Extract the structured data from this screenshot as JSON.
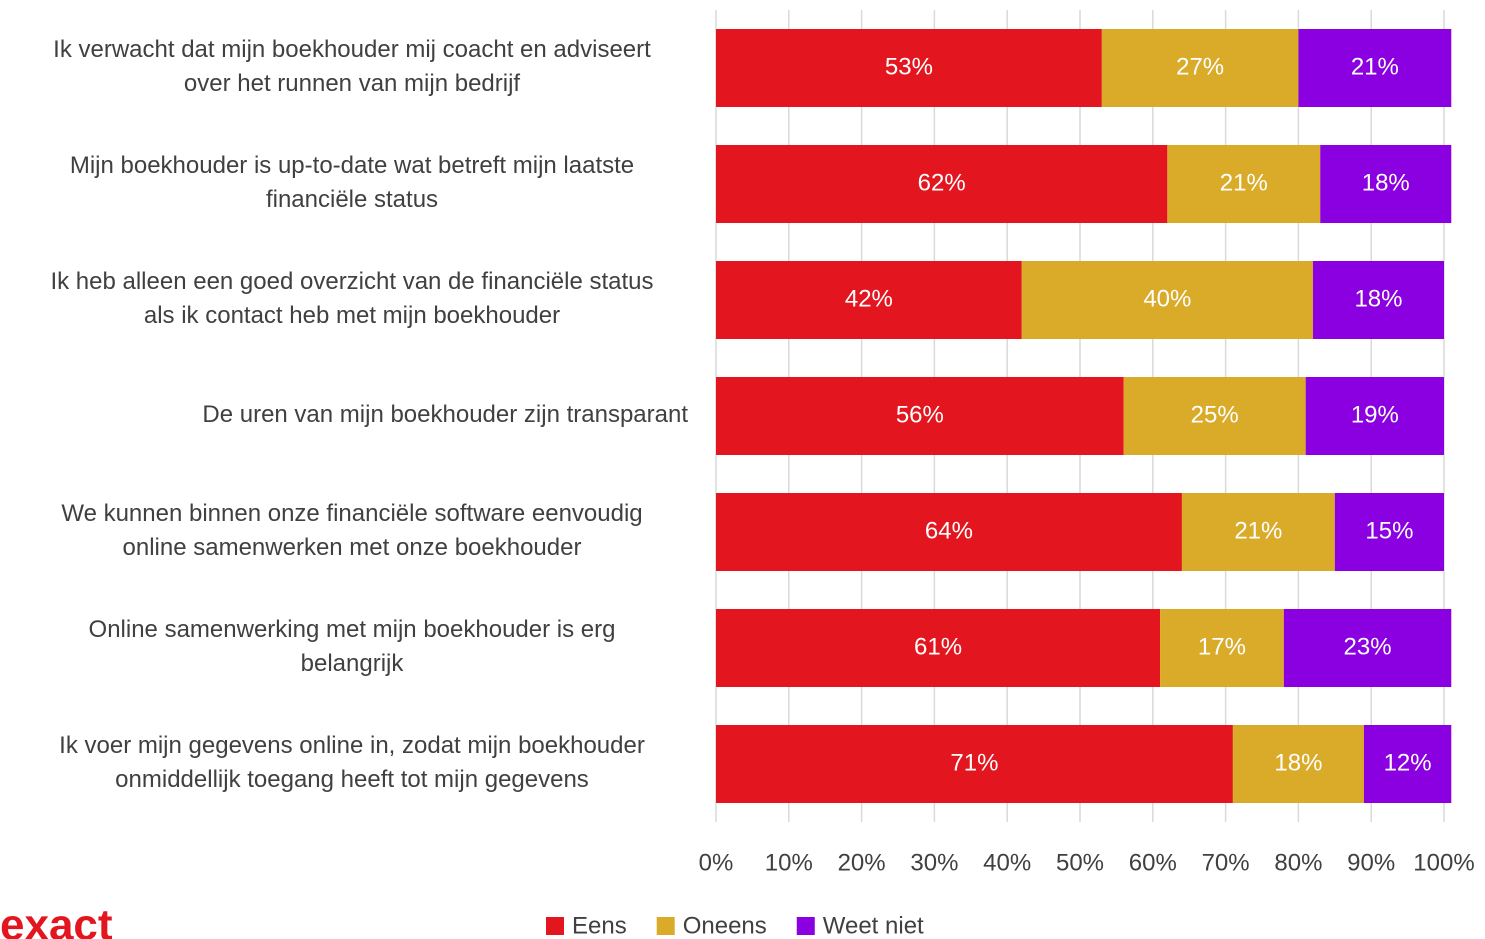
{
  "chart_data": {
    "type": "stacked_barh",
    "categories": [
      "Ik verwacht dat mijn boekhouder mij coacht en adviseert\nover het runnen van mijn bedrijf",
      "Mijn boekhouder is up-to-date wat betreft mijn laatste\nfinanciële status",
      "Ik heb alleen een goed overzicht van de financiële status\nals ik contact heb met mijn boekhouder",
      "De uren van mijn boekhouder zijn transparant",
      "We kunnen binnen onze financiële software eenvoudig\nonline samenwerken met onze boekhouder",
      "Online samenwerking met mijn boekhouder is erg\nbelangrijk",
      "Ik voer mijn gegevens online in, zodat mijn boekhouder\nonmiddellijk toegang heeft tot mijn gegevens"
    ],
    "series": [
      {
        "name": "Eens",
        "color": "#e3151e",
        "values": [
          53,
          62,
          42,
          56,
          64,
          61,
          71
        ],
        "value_labels": [
          "53%",
          "62%",
          "42%",
          "56%",
          "64%",
          "61%",
          "71%"
        ]
      },
      {
        "name": "Oneens",
        "color": "#d9ab29",
        "values": [
          27,
          21,
          40,
          25,
          21,
          17,
          18
        ],
        "value_labels": [
          "27%",
          "21%",
          "40%",
          "25%",
          "21%",
          "17%",
          "18%"
        ]
      },
      {
        "name": "Weet niet",
        "color": "#8a00e0",
        "values": [
          21,
          18,
          18,
          19,
          15,
          23,
          12
        ],
        "value_labels": [
          "21%",
          "18%",
          "18%",
          "19%",
          "15%",
          "23%",
          "12%"
        ]
      }
    ],
    "xlim": [
      0,
      100
    ],
    "xticks": [
      {
        "value": 0,
        "label": "0%"
      },
      {
        "value": 10,
        "label": "10%"
      },
      {
        "value": 20,
        "label": "20%"
      },
      {
        "value": 30,
        "label": "30%"
      },
      {
        "value": 40,
        "label": "40%"
      },
      {
        "value": 50,
        "label": "50%"
      },
      {
        "value": 60,
        "label": "60%"
      },
      {
        "value": 70,
        "label": "70%"
      },
      {
        "value": 80,
        "label": "80%"
      },
      {
        "value": 90,
        "label": "90%"
      },
      {
        "value": 100,
        "label": "100%"
      }
    ],
    "grid": true,
    "legend": "bottom",
    "logo": "exact"
  }
}
